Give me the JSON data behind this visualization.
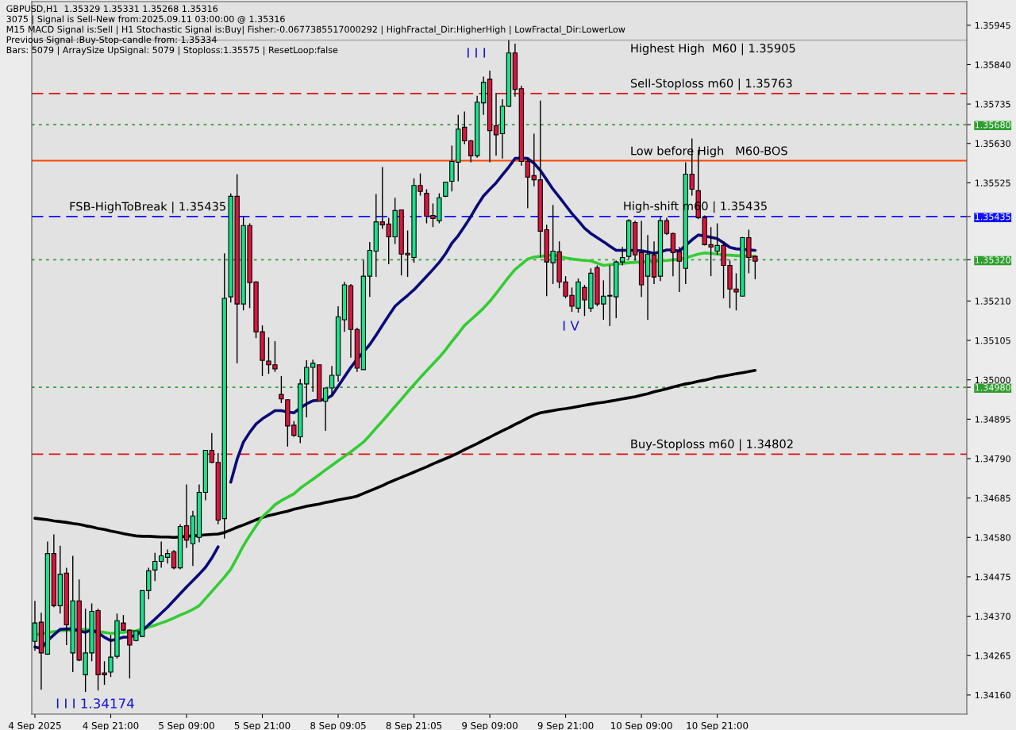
{
  "chart_data": {
    "type": "candlestick",
    "categories": [
      "4 Sep 2025",
      null,
      null,
      null,
      null,
      null,
      null,
      null,
      null,
      null,
      null,
      null,
      "4 Sep 21:00",
      null,
      null,
      null,
      null,
      null,
      null,
      null,
      null,
      null,
      null,
      null,
      "5 Sep 09:00",
      null,
      null,
      null,
      null,
      null,
      null,
      null,
      null,
      null,
      null,
      null,
      "5 Sep 21:00",
      null,
      null,
      null,
      null,
      null,
      null,
      null,
      null,
      null,
      null,
      null,
      "8 Sep 09:05",
      null,
      null,
      null,
      null,
      null,
      null,
      null,
      null,
      null,
      null,
      null,
      "8 Sep 21:05",
      null,
      null,
      null,
      null,
      null,
      null,
      null,
      null,
      null,
      null,
      null,
      "9 Sep 09:00",
      null,
      null,
      null,
      null,
      null,
      null,
      null,
      null,
      null,
      null,
      null,
      "9 Sep 21:00",
      null,
      null,
      null,
      null,
      null,
      null,
      null,
      null,
      null,
      null,
      null,
      "10 Sep 09:00",
      null,
      null,
      null,
      null,
      null,
      null,
      null,
      null,
      null,
      null,
      null,
      "10 Sep 21:00",
      null,
      null,
      null,
      null,
      null,
      null
    ],
    "ohlc": [
      [
        1.34303,
        1.34411,
        1.34278,
        1.34352
      ],
      [
        1.34354,
        1.34379,
        1.34174,
        1.34272
      ],
      [
        1.34269,
        1.34569,
        1.34267,
        1.34537
      ],
      [
        1.34537,
        1.34588,
        1.34394,
        1.34398
      ],
      [
        1.34398,
        1.34558,
        1.34377,
        1.34482
      ],
      [
        1.34485,
        1.34499,
        1.34293,
        1.34347
      ],
      [
        1.34272,
        1.34531,
        1.34221,
        1.34411
      ],
      [
        1.34411,
        1.34468,
        1.3425,
        1.34253
      ],
      [
        1.34214,
        1.3439,
        1.34168,
        1.34272
      ],
      [
        1.34272,
        1.34404,
        1.3425,
        1.34383
      ],
      [
        1.34385,
        1.3439,
        1.34172,
        1.34214
      ],
      [
        1.34219,
        1.3425,
        1.34187,
        1.34214
      ],
      [
        1.34221,
        1.3432,
        1.34208,
        1.34261
      ],
      [
        1.34263,
        1.34377,
        1.34257,
        1.34358
      ],
      [
        1.34352,
        1.34373,
        1.34331,
        1.34333
      ],
      [
        1.34333,
        1.34335,
        1.34204,
        1.34293
      ],
      [
        1.34305,
        1.34331,
        1.34303,
        1.34331
      ],
      [
        1.34316,
        1.34438,
        1.34314,
        1.34438
      ],
      [
        1.34438,
        1.34499,
        1.34415,
        1.34491
      ],
      [
        1.34493,
        1.34539,
        1.34464,
        1.34516
      ],
      [
        1.34516,
        1.34569,
        1.34499,
        1.34531
      ],
      [
        1.34527,
        1.34548,
        1.3451,
        1.34537
      ],
      [
        1.34542,
        1.34546,
        1.34495,
        1.34499
      ],
      [
        1.34499,
        1.34615,
        1.34495,
        1.34609
      ],
      [
        1.34611,
        1.34721,
        1.34552,
        1.34573
      ],
      [
        1.34563,
        1.34651,
        1.34504,
        1.34637
      ],
      [
        1.3458,
        1.34721,
        1.34567,
        1.347
      ],
      [
        1.347,
        1.34812,
        1.34679,
        1.34812
      ],
      [
        1.34812,
        1.34858,
        1.34778,
        1.3478
      ],
      [
        1.3478,
        1.34805,
        1.34615,
        1.34626
      ],
      [
        1.3463,
        1.35337,
        1.34577,
        1.35217
      ],
      [
        1.35221,
        1.35497,
        1.35206,
        1.35489
      ],
      [
        1.35489,
        1.35548,
        1.35044,
        1.35202
      ],
      [
        1.35202,
        1.35434,
        1.35185,
        1.35411
      ],
      [
        1.35411,
        1.35417,
        1.35191,
        1.35259
      ],
      [
        1.35261,
        1.35263,
        1.35111,
        1.35128
      ],
      [
        1.35128,
        1.35145,
        1.3501,
        1.35052
      ],
      [
        1.3505,
        1.35113,
        1.35016,
        1.3504
      ],
      [
        1.3504,
        1.35103,
        1.35021,
        1.35029
      ],
      [
        1.34961,
        1.3501,
        1.34938,
        1.34949
      ],
      [
        1.34947,
        1.34947,
        1.34822,
        1.34877
      ],
      [
        1.34879,
        1.3489,
        1.34848,
        1.34852
      ],
      [
        1.34848,
        1.35002,
        1.34831,
        1.34989
      ],
      [
        1.34989,
        1.35052,
        1.349,
        1.35033
      ],
      [
        1.35033,
        1.35054,
        1.34968,
        1.35044
      ],
      [
        1.3504,
        1.3504,
        1.34943,
        1.34943
      ],
      [
        1.34943,
        1.34978,
        1.34864,
        1.34978
      ],
      [
        1.34978,
        1.35037,
        1.34959,
        1.35012
      ],
      [
        1.35012,
        1.35196,
        1.34995,
        1.35168
      ],
      [
        1.3516,
        1.35261,
        1.35128,
        1.35253
      ],
      [
        1.35251,
        1.35255,
        1.35059,
        1.35134
      ],
      [
        1.35134,
        1.35139,
        1.35021,
        1.35031
      ],
      [
        1.35027,
        1.35318,
        1.35027,
        1.35276
      ],
      [
        1.35276,
        1.35367,
        1.35221,
        1.35345
      ],
      [
        1.35343,
        1.35495,
        1.35274,
        1.35421
      ],
      [
        1.35421,
        1.35567,
        1.35402,
        1.35413
      ],
      [
        1.35415,
        1.35432,
        1.35308,
        1.35381
      ],
      [
        1.35381,
        1.35485,
        1.35362,
        1.35451
      ],
      [
        1.35453,
        1.35453,
        1.35278,
        1.35335
      ],
      [
        1.35337,
        1.35398,
        1.35274,
        1.35333
      ],
      [
        1.35326,
        1.35537,
        1.35312,
        1.35518
      ],
      [
        1.35518,
        1.3555,
        1.35491,
        1.35502
      ],
      [
        1.35497,
        1.35508,
        1.35417,
        1.35436
      ],
      [
        1.35438,
        1.3547,
        1.35407,
        1.3543
      ],
      [
        1.35424,
        1.35497,
        1.35417,
        1.35485
      ],
      [
        1.35489,
        1.35527,
        1.35487,
        1.35527
      ],
      [
        1.35529,
        1.35624,
        1.35502,
        1.35582
      ],
      [
        1.3558,
        1.35706,
        1.35529,
        1.35668
      ],
      [
        1.35673,
        1.35715,
        1.35628,
        1.35637
      ],
      [
        1.35637,
        1.35639,
        1.3558,
        1.35597
      ],
      [
        1.35597,
        1.35757,
        1.35592,
        1.3574
      ],
      [
        1.35738,
        1.35808,
        1.35706,
        1.35793
      ],
      [
        1.35801,
        1.35824,
        1.3558,
        1.35664
      ],
      [
        1.35677,
        1.35765,
        1.35597,
        1.35653
      ],
      [
        1.35656,
        1.35748,
        1.3559,
        1.35729
      ],
      [
        1.35729,
        1.35905,
        1.35727,
        1.35871
      ],
      [
        1.35871,
        1.35896,
        1.35755,
        1.35774
      ],
      [
        1.35776,
        1.35784,
        1.35571,
        1.35582
      ],
      [
        1.35582,
        1.3559,
        1.35457,
        1.3554
      ],
      [
        1.35544,
        1.35656,
        1.35516,
        1.35533
      ],
      [
        1.35533,
        1.35744,
        1.35326,
        1.35396
      ],
      [
        1.354,
        1.35413,
        1.35223,
        1.35314
      ],
      [
        1.35312,
        1.35466,
        1.35255,
        1.35343
      ],
      [
        1.35341,
        1.35369,
        1.35244,
        1.35261
      ],
      [
        1.35261,
        1.35276,
        1.35217,
        1.35223
      ],
      [
        1.35225,
        1.35246,
        1.35181,
        1.35196
      ],
      [
        1.35191,
        1.3527,
        1.35179,
        1.35261
      ],
      [
        1.35246,
        1.35253,
        1.3517,
        1.35213
      ],
      [
        1.35191,
        1.35297,
        1.35181,
        1.35284
      ],
      [
        1.35299,
        1.35305,
        1.35196,
        1.35202
      ],
      [
        1.35202,
        1.35265,
        1.3516,
        1.35223
      ],
      [
        1.35223,
        1.35305,
        1.35143,
        1.35225
      ],
      [
        1.35221,
        1.35318,
        1.35164,
        1.35314
      ],
      [
        1.35314,
        1.35354,
        1.35305,
        1.35326
      ],
      [
        1.35329,
        1.35428,
        1.35322,
        1.35424
      ],
      [
        1.35419,
        1.35424,
        1.35318,
        1.35333
      ],
      [
        1.35339,
        1.35424,
        1.35221,
        1.35253
      ],
      [
        1.35276,
        1.35386,
        1.3516,
        1.35335
      ],
      [
        1.35333,
        1.35369,
        1.35255,
        1.35274
      ],
      [
        1.35276,
        1.35434,
        1.35263,
        1.35424
      ],
      [
        1.35424,
        1.35432,
        1.35386,
        1.3539
      ],
      [
        1.3539,
        1.35392,
        1.35276,
        1.35339
      ],
      [
        1.35341,
        1.35354,
        1.35234,
        1.35316
      ],
      [
        1.35297,
        1.3558,
        1.35255,
        1.35548
      ],
      [
        1.35548,
        1.35643,
        1.35491,
        1.35508
      ],
      [
        1.35504,
        1.35613,
        1.35428,
        1.35432
      ],
      [
        1.35432,
        1.35438,
        1.35358,
        1.3536
      ],
      [
        1.3536,
        1.35407,
        1.35276,
        1.35354
      ],
      [
        1.35343,
        1.35417,
        1.35333,
        1.35358
      ],
      [
        1.35358,
        1.35369,
        1.35217,
        1.35305
      ],
      [
        1.35305,
        1.35318,
        1.35191,
        1.35242
      ],
      [
        1.35242,
        1.35284,
        1.35185,
        1.35234
      ],
      [
        1.35223,
        1.35381,
        1.35223,
        1.35379
      ],
      [
        1.35379,
        1.354,
        1.35284,
        1.35326
      ],
      [
        1.35329,
        1.35331,
        1.35268,
        1.35316
      ]
    ],
    "colors": [
      "#19e28a",
      "#dc143c",
      "#19e28a",
      "#dc143c",
      "#19e28a",
      "#dc143c",
      "#19e28a",
      "#dc143c",
      "#19e28a",
      "#19e28a",
      "#dc143c",
      "#dc143c",
      "#19e28a",
      "#19e28a",
      "#dc143c",
      "#dc143c",
      "#19e28a",
      "#19e28a",
      "#19e28a",
      "#19e28a",
      "#19e28a",
      "#19e28a",
      "#dc143c",
      "#19e28a",
      "#dc143c",
      "#19e28a",
      "#19e28a",
      "#19e28a",
      "#dc143c",
      "#dc143c",
      "#19e28a",
      "#19e28a",
      "#dc143c",
      "#19e28a",
      "#dc143c",
      "#dc143c",
      "#dc143c",
      "#dc143c",
      "#dc143c",
      "#dc143c",
      "#dc143c",
      "#dc143c",
      "#19e28a",
      "#19e28a",
      "#19e28a",
      "#dc143c",
      "#19e28a",
      "#19e28a",
      "#19e28a",
      "#19e28a",
      "#dc143c",
      "#dc143c",
      "#19e28a",
      "#19e28a",
      "#19e28a",
      "#dc143c",
      "#dc143c",
      "#19e28a",
      "#dc143c",
      "#dc143c",
      "#19e28a",
      "#dc143c",
      "#dc143c",
      "#dc143c",
      "#19e28a",
      "#19e28a",
      "#19e28a",
      "#19e28a",
      "#dc143c",
      "#dc143c",
      "#19e28a",
      "#19e28a",
      "#dc143c",
      "#dc143c",
      "#19e28a",
      "#19e28a",
      "#dc143c",
      "#dc143c",
      "#dc143c",
      "#dc143c",
      "#dc143c",
      "#dc143c",
      "#19e28a",
      "#dc143c",
      "#dc143c",
      "#dc143c",
      "#19e28a",
      "#dc143c",
      "#19e28a",
      "#dc143c",
      "#19e28a",
      "#19e28a",
      "#19e28a",
      "#19e28a",
      "#19e28a",
      "#dc143c",
      "#dc143c",
      "#19e28a",
      "#dc143c",
      "#19e28a",
      "#dc143c",
      "#dc143c",
      "#dc143c",
      "#19e28a",
      "#dc143c",
      "#dc143c",
      "#dc143c",
      "#dc143c",
      "#19e28a",
      "#dc143c",
      "#dc143c",
      "#dc143c",
      "#19e28a",
      "#dc143c",
      "#dc143c"
    ],
    "series": [
      {
        "type": "line",
        "color": "#000000",
        "values": [
          1.34631,
          1.34629,
          1.34627,
          1.34624,
          1.34622,
          1.3462,
          1.34617,
          1.34615,
          1.34611,
          1.34608,
          1.34604,
          1.34601,
          1.34597,
          1.34594,
          1.3459,
          1.34587,
          1.34584,
          1.34583,
          1.34583,
          1.34582,
          1.34581,
          1.34581,
          1.3458,
          1.34581,
          1.34583,
          1.34584,
          1.34585,
          1.34587,
          1.34588,
          1.34589,
          1.34593,
          1.346,
          1.34607,
          1.34613,
          1.3462,
          1.34627,
          1.34633,
          1.34638,
          1.34642,
          1.34646,
          1.3465,
          1.34655,
          1.34659,
          1.34663,
          1.34666,
          1.34669,
          1.34673,
          1.34676,
          1.3468,
          1.34683,
          1.34686,
          1.3469,
          1.34697,
          1.34704,
          1.34711,
          1.34718,
          1.34726,
          1.34733,
          1.3474,
          1.34747,
          1.34754,
          1.34761,
          1.34768,
          1.34776,
          1.34783,
          1.3479,
          1.34797,
          1.34805,
          1.34814,
          1.34822,
          1.3483,
          1.34839,
          1.34847,
          1.34856,
          1.34864,
          1.34872,
          1.34881,
          1.34889,
          1.34898,
          1.34906,
          1.34912,
          1.34915,
          1.34918,
          1.34921,
          1.34923,
          1.34926,
          1.34929,
          1.34932,
          1.34935,
          1.34938,
          1.3494,
          1.34943,
          1.34946,
          1.34949,
          1.34952,
          1.34955,
          1.34959,
          1.34963,
          1.34968,
          1.34972,
          1.34976,
          1.34981,
          1.34985,
          1.34989,
          1.34992,
          1.34996,
          1.34999,
          1.35003,
          1.35007,
          1.3501,
          1.35013,
          1.35016,
          1.35019,
          1.35022,
          1.35025
        ]
      },
      {
        "type": "line",
        "color": "#33cc33",
        "values": [
          1.3432,
          1.34323,
          1.34326,
          1.34329,
          1.34331,
          1.34332,
          1.34333,
          1.34334,
          1.34335,
          1.34332,
          1.34329,
          1.34327,
          1.34324,
          1.34326,
          1.34327,
          1.34329,
          1.34331,
          1.34336,
          1.34341,
          1.34346,
          1.34352,
          1.34358,
          1.34365,
          1.34373,
          1.3438,
          1.34388,
          1.34398,
          1.34417,
          1.34436,
          1.34455,
          1.34474,
          1.34495,
          1.34526,
          1.34558,
          1.34585,
          1.3461,
          1.34635,
          1.3465,
          1.34667,
          1.34678,
          1.34687,
          1.34696,
          1.34711,
          1.34723,
          1.34735,
          1.34747,
          1.3476,
          1.34772,
          1.34784,
          1.34796,
          1.34808,
          1.34821,
          1.34834,
          1.34852,
          1.34871,
          1.3489,
          1.34909,
          1.34929,
          1.34948,
          1.34968,
          1.34987,
          1.35006,
          1.35024,
          1.35042,
          1.3506,
          1.3508,
          1.35102,
          1.35123,
          1.35145,
          1.3516,
          1.35175,
          1.35191,
          1.35209,
          1.3523,
          1.35252,
          1.35274,
          1.35294,
          1.35308,
          1.35322,
          1.35327,
          1.35329,
          1.35331,
          1.35333,
          1.35329,
          1.35325,
          1.35322,
          1.3532,
          1.35318,
          1.35317,
          1.35311,
          1.35305,
          1.35307,
          1.35308,
          1.3531,
          1.35312,
          1.35313,
          1.35314,
          1.35315,
          1.35316,
          1.35317,
          1.35318,
          1.3532,
          1.35321,
          1.35325,
          1.3533,
          1.35335,
          1.35338,
          1.35337,
          1.35335,
          1.35333,
          1.35332,
          1.35331,
          1.3533,
          1.35329,
          1.35329
        ]
      },
      {
        "type": "line",
        "color": "#0a0a78",
        "values": [
          1.34288,
          1.34284,
          1.34305,
          1.3432,
          1.34335,
          1.34336,
          1.34336,
          1.34331,
          1.34327,
          1.34334,
          1.34325,
          1.34314,
          1.34305,
          1.34309,
          1.34314,
          1.34314,
          1.3432,
          1.34331,
          1.34347,
          1.34362,
          1.34378,
          1.34394,
          1.34412,
          1.3443,
          1.34448,
          1.34465,
          1.34482,
          1.345,
          1.34525,
          1.34555,
          null,
          1.34727,
          1.34788,
          1.34834,
          1.3486,
          1.34882,
          1.34896,
          1.34907,
          1.34918,
          1.34918,
          1.34914,
          1.34912,
          1.34925,
          1.34936,
          1.34944,
          1.34946,
          1.34948,
          1.34958,
          1.34983,
          1.35008,
          1.35033,
          1.35055,
          1.35074,
          1.35094,
          1.35119,
          1.35145,
          1.35171,
          1.35196,
          1.35211,
          1.35225,
          1.3524,
          1.35258,
          1.35276,
          1.35294,
          1.35313,
          1.35336,
          1.35364,
          1.35384,
          1.35409,
          1.35435,
          1.35464,
          1.3549,
          1.35508,
          1.35525,
          1.35546,
          1.35567,
          1.3559,
          1.35591,
          1.3559,
          1.35577,
          1.35558,
          1.35533,
          1.35508,
          1.35487,
          1.35465,
          1.35443,
          1.35424,
          1.35404,
          1.3539,
          1.35379,
          1.35368,
          1.35356,
          1.35345,
          1.35345,
          1.35345,
          1.35345,
          1.35344,
          1.35341,
          1.35337,
          1.35341,
          1.35346,
          1.35346,
          1.35343,
          1.35358,
          1.35373,
          1.35386,
          1.35383,
          1.3538,
          1.35376,
          1.35365,
          1.35353,
          1.35349,
          1.35348,
          1.35346,
          1.35345
        ]
      }
    ],
    "ref_lines": [
      {
        "axis": "y",
        "value": 1.35905,
        "label": "Highest High  M60 | 1.35905",
        "color": "#b0b0b0",
        "line_style": "solid"
      },
      {
        "axis": "y",
        "value": 1.35763,
        "label": "Sell-Stoploss m60 | 1.35763",
        "color": "#e01010",
        "line_style": "dashed"
      },
      {
        "axis": "y",
        "value": 1.3568,
        "color": "#2e9e2e",
        "line_style": "dotted"
      },
      {
        "axis": "y",
        "value": 1.35584,
        "label": "Low before High   M60-BOS",
        "color": "#ff4500",
        "line_style": "solid"
      },
      {
        "axis": "y",
        "value": 1.35435,
        "label": "FSB-HighToBreak | 1.35435",
        "color": "#1010ff",
        "line_style": "dashed"
      },
      {
        "axis": "y",
        "value": 1.3532,
        "color": "#2e9e2e",
        "line_style": "dotted"
      },
      {
        "axis": "y",
        "value": 1.3498,
        "color": "#2e9e2e",
        "line_style": "dotted"
      },
      {
        "axis": "y",
        "value": 1.34802,
        "label": "Buy-Stoploss m60 | 1.34802",
        "color": "#e01010",
        "line_style": "dashed"
      }
    ],
    "annotations": [
      "GBPUSD,H1  1.35329 1.35331 1.35268 1.35316",
      "3075 | Signal is Sell-New from:2025.09.11 03:00:00 @ 1.35316",
      "M15 MACD Signal is:Sell | H1 Stochastic Signal is:Buy| Fisher:-0.0677385517000292 | HighFractal_Dir:HigherHigh | LowFractal_Dir:LowerLow",
      "Previous Signal :Buy-Stop-candle from: 1.35334",
      "Bars: 5079 | ArraySize UpSignal: 5079 | Stoploss:1.35575 | ResetLoop:false",
      "I I I",
      "I V",
      "I I I 1.34174",
      "High-shift m60 | 1.35435"
    ],
    "ylim": [
      1.34109,
      1.36008
    ],
    "yticks": [
      1.35945,
      {
        "value": 1.3584,
        "label": "1.35840"
      },
      1.35735,
      {
        "value": 1.3568,
        "label": "1.35680"
      },
      {
        "value": 1.3563,
        "label": "1.35630"
      },
      1.35525,
      1.35435,
      {
        "value": 1.3532,
        "label": "1.35320"
      },
      {
        "value": 1.3521,
        "label": "1.35210"
      },
      1.35105,
      {
        "value": 1.35,
        "label": "1.35000"
      },
      {
        "value": 1.3498,
        "label": "1.34980"
      },
      1.34895,
      {
        "value": 1.3479,
        "label": "1.34790"
      },
      1.34685,
      {
        "value": 1.3458,
        "label": "1.34580"
      },
      1.34475,
      {
        "value": 1.3437,
        "label": "1.34370"
      },
      1.34265,
      {
        "value": 1.3416,
        "label": "1.34160"
      }
    ],
    "grid": false,
    "legend": false
  }
}
